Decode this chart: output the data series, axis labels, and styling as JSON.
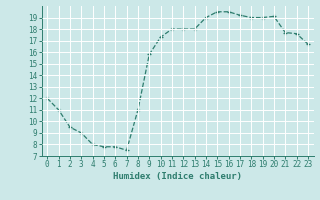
{
  "xlabel": "Humidex (Indice chaleur)",
  "ylabel": "",
  "x": [
    0,
    1,
    2,
    3,
    4,
    5,
    6,
    7,
    8,
    9,
    10,
    11,
    12,
    13,
    14,
    15,
    16,
    17,
    18,
    19,
    20,
    21,
    22,
    23
  ],
  "y": [
    12,
    11,
    9.5,
    9,
    8,
    7.8,
    7.8,
    7.5,
    11,
    15.8,
    17.3,
    18,
    18,
    18,
    19,
    19.5,
    19.5,
    19.2,
    19,
    19,
    19.1,
    17.7,
    17.6,
    16.7
  ],
  "line_color": "#2e7d6e",
  "marker": "+",
  "bg_color": "#cce8e8",
  "grid_color": "#ffffff",
  "ylim": [
    7,
    20
  ],
  "xlim": [
    -0.5,
    23.5
  ],
  "yticks": [
    7,
    8,
    9,
    10,
    11,
    12,
    13,
    14,
    15,
    16,
    17,
    18,
    19
  ],
  "xticks": [
    0,
    1,
    2,
    3,
    4,
    5,
    6,
    7,
    8,
    9,
    10,
    11,
    12,
    13,
    14,
    15,
    16,
    17,
    18,
    19,
    20,
    21,
    22,
    23
  ],
  "tick_fontsize": 5.5,
  "label_fontsize": 6.5,
  "markersize": 3,
  "linewidth": 0.9
}
